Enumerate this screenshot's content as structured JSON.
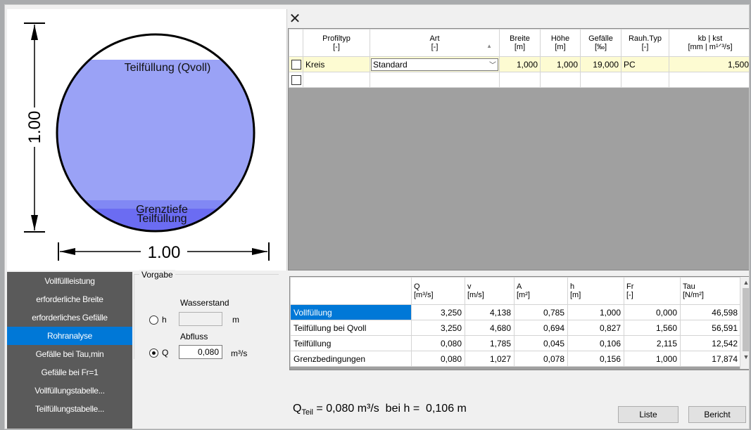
{
  "drawing": {
    "label_full": "Teilfüllung (Qvoll)",
    "label_critical": "Grenztiefe",
    "label_partial": "Teilfüllung",
    "dim_vertical": "1.00",
    "dim_horizontal": "1.00",
    "colors": {
      "fill_light": "#9aa2f6",
      "fill_dark": "#6b6cf2",
      "band": "#8188f4",
      "outline": "#000000"
    }
  },
  "close_icon": "close-icon",
  "profile_table": {
    "headers": [
      {
        "l1": "Profiltyp",
        "l2": "[-]"
      },
      {
        "l1": "Art",
        "l2": "[-]"
      },
      {
        "l1": "Breite",
        "l2": "[m]"
      },
      {
        "l1": "Höhe",
        "l2": "[m]"
      },
      {
        "l1": "Gefälle",
        "l2": "[‰]"
      },
      {
        "l1": "Rauh.Typ",
        "l2": "[-]"
      },
      {
        "l1": "kb | kst",
        "l2": "[mm | m¹ᐟ³/s]"
      }
    ],
    "row": {
      "profiltyp": "Kreis",
      "art": "Standard",
      "breite": "1,000",
      "hoehe": "1,000",
      "gefaelle": "19,000",
      "rauh_typ": "PC",
      "kb_kst": "1,500"
    }
  },
  "nav": {
    "items": [
      "Vollfüllleistung",
      "erforderliche Breite",
      "erforderliches Gefälle",
      "Rohranalyse",
      "Gefälle bei Tau,min",
      "Gefälle bei Fr=1",
      "Vollfüllungstabelle...",
      "Teilfüllungstabelle..."
    ],
    "selected": "Rohranalyse"
  },
  "vorgabe": {
    "title": "Vorgabe",
    "wasserstand_label": "Wasserstand",
    "h_label": "h",
    "h_unit": "m",
    "h_value": "",
    "abfluss_label": "Abfluss",
    "q_label": "Q",
    "q_value": "0,080",
    "q_unit": "m³/s",
    "selected": "Q"
  },
  "results": {
    "headers": [
      {
        "l1": "",
        "l2": ""
      },
      {
        "l1": "Q",
        "l2": "[m³/s]"
      },
      {
        "l1": "v",
        "l2": "[m/s]"
      },
      {
        "l1": "A",
        "l2": "[m²]"
      },
      {
        "l1": "h",
        "l2": "[m]"
      },
      {
        "l1": "Fr",
        "l2": "[-]"
      },
      {
        "l1": "Tau",
        "l2": "[N/m²]"
      }
    ],
    "rows": [
      {
        "name": "Vollfüllung",
        "q": "3,250",
        "v": "4,138",
        "a": "0,785",
        "h": "1,000",
        "fr": "0,000",
        "tau": "46,598"
      },
      {
        "name": "Teilfüllung bei Qvoll",
        "q": "3,250",
        "v": "4,680",
        "a": "0,694",
        "h": "0,827",
        "fr": "1,560",
        "tau": "56,591"
      },
      {
        "name": "Teilfüllung",
        "q": "0,080",
        "v": "1,785",
        "a": "0,045",
        "h": "0,106",
        "fr": "2,115",
        "tau": "12,542"
      },
      {
        "name": "Grenzbedingungen",
        "q": "0,080",
        "v": "1,027",
        "a": "0,078",
        "h": "0,156",
        "fr": "1,000",
        "tau": "17,874"
      }
    ]
  },
  "summary": {
    "q_symbol": "Q",
    "q_sub": "Teil",
    "text": " = 0,080 m³/s  bei h =  0,106 m"
  },
  "buttons": {
    "liste": "Liste",
    "bericht": "Bericht"
  }
}
